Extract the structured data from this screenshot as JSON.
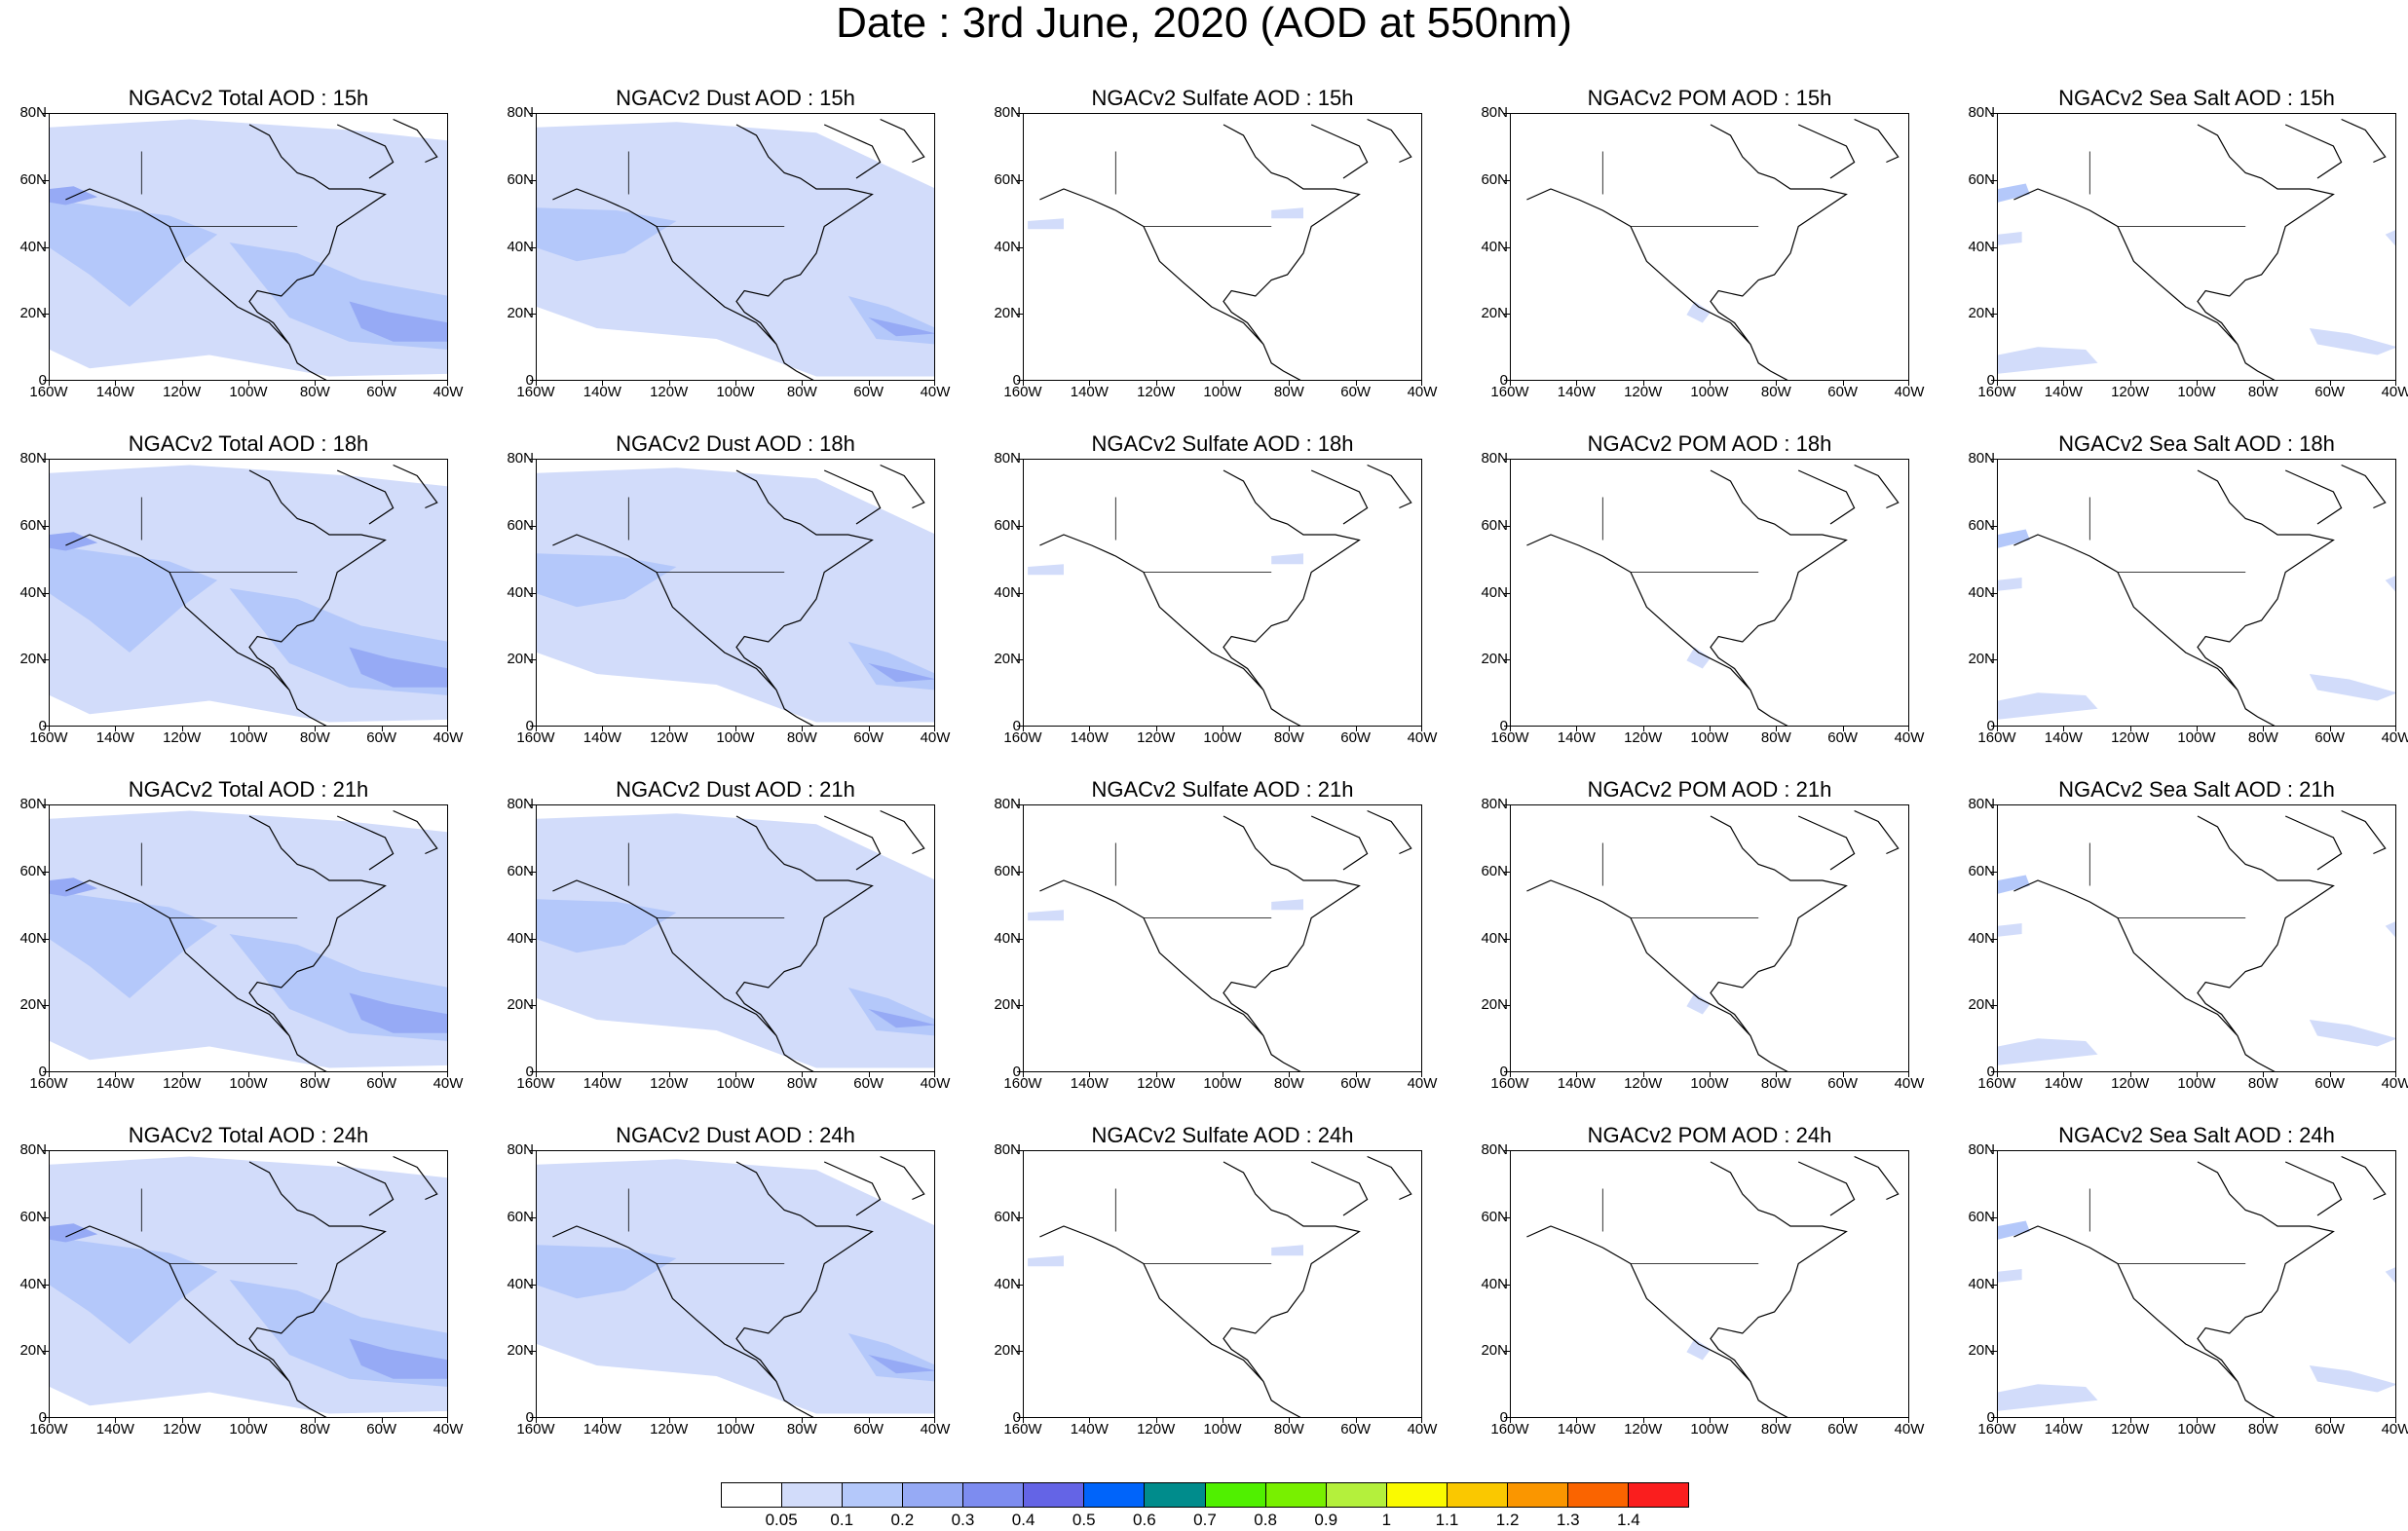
{
  "title": "Date : 3rd June, 2020 (AOD at 550nm)",
  "lat_labels": [
    "80N",
    "60N",
    "40N",
    "20N",
    "0"
  ],
  "lon_labels": [
    "160W",
    "140W",
    "120W",
    "100W",
    "80W",
    "60W",
    "40W"
  ],
  "rows": [
    {
      "panels": [
        {
          "title": "NGACv2 Total AOD : 15h",
          "type": "total"
        },
        {
          "title": "NGACv2 Dust AOD : 15h",
          "type": "dust"
        },
        {
          "title": "NGACv2 Sulfate AOD : 15h",
          "type": "sulfate"
        },
        {
          "title": "NGACv2 POM AOD : 15h",
          "type": "pom"
        },
        {
          "title": "NGACv2 Sea Salt AOD : 15h",
          "type": "seasalt"
        }
      ]
    },
    {
      "panels": [
        {
          "title": "NGACv2 Total AOD : 18h",
          "type": "total"
        },
        {
          "title": "NGACv2 Dust AOD : 18h",
          "type": "dust"
        },
        {
          "title": "NGACv2 Sulfate AOD : 18h",
          "type": "sulfate"
        },
        {
          "title": "NGACv2 POM AOD : 18h",
          "type": "pom"
        },
        {
          "title": "NGACv2 Sea Salt AOD : 18h",
          "type": "seasalt"
        }
      ]
    },
    {
      "panels": [
        {
          "title": "NGACv2 Total AOD : 21h",
          "type": "total"
        },
        {
          "title": "NGACv2 Dust AOD : 21h",
          "type": "dust"
        },
        {
          "title": "NGACv2 Sulfate AOD : 21h",
          "type": "sulfate"
        },
        {
          "title": "NGACv2 POM AOD : 21h",
          "type": "pom"
        },
        {
          "title": "NGACv2 Sea Salt AOD : 21h",
          "type": "seasalt"
        }
      ]
    },
    {
      "panels": [
        {
          "title": "NGACv2 Total AOD : 24h",
          "type": "total"
        },
        {
          "title": "NGACv2 Dust AOD : 24h",
          "type": "dust"
        },
        {
          "title": "NGACv2 Sulfate AOD : 24h",
          "type": "sulfate"
        },
        {
          "title": "NGACv2 POM AOD : 24h",
          "type": "pom"
        },
        {
          "title": "NGACv2 Sea Salt  AOD : 24h",
          "type": "seasalt"
        }
      ]
    }
  ],
  "colorbar": {
    "colors": [
      "#ffffff",
      "#d2dcfa",
      "#b4c8fa",
      "#96aaf5",
      "#7d8cf0",
      "#6464e6",
      "#0064fa",
      "#008c8c",
      "#50f000",
      "#78f000",
      "#b4f03c",
      "#fafa00",
      "#fac800",
      "#fa9600",
      "#fa6400",
      "#fa1e1e"
    ],
    "labels": [
      "0.05",
      "0.1",
      "0.2",
      "0.3",
      "0.4",
      "0.5",
      "0.6",
      "0.7",
      "0.8",
      "0.9",
      "1",
      "1.1",
      "1.2",
      "1.3",
      "1.4"
    ]
  }
}
